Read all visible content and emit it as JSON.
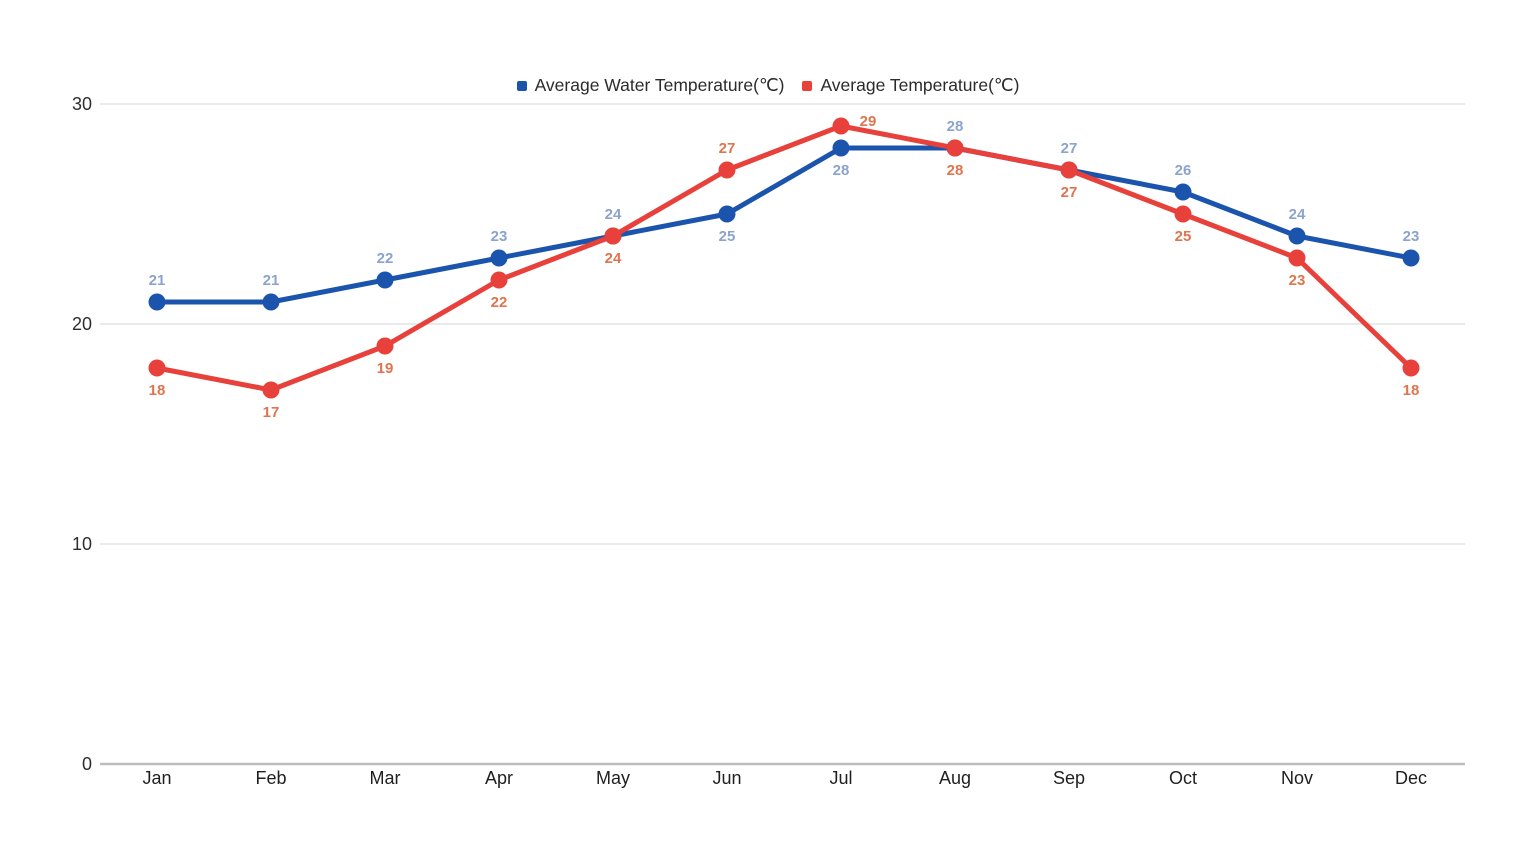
{
  "chart_data": {
    "type": "line",
    "title": "",
    "categories": [
      "Jan",
      "Feb",
      "Mar",
      "Apr",
      "May",
      "Jun",
      "Jul",
      "Aug",
      "Sep",
      "Oct",
      "Nov",
      "Dec"
    ],
    "series": [
      {
        "name": "Average Water Temperature(℃)",
        "color": "#1b54ad",
        "label_color": "#8ba3cd",
        "values": [
          21,
          21,
          22,
          23,
          24,
          25,
          28,
          28,
          27,
          26,
          24,
          23
        ]
      },
      {
        "name": "Average Temperature(℃)",
        "color": "#e8403a",
        "label_color": "#df744f",
        "values": [
          18,
          17,
          19,
          22,
          24,
          27,
          29,
          28,
          27,
          25,
          23,
          18
        ]
      }
    ],
    "xlabel": "",
    "ylabel": "",
    "yticks": [
      0,
      10,
      20,
      30
    ],
    "ylim": [
      0,
      30
    ],
    "grid": true,
    "legend_position": "top-center",
    "gridline_color": "#e3e3e3",
    "zero_line_color": "#bdbdbd",
    "axis_label_color": "#2e2e2e"
  }
}
